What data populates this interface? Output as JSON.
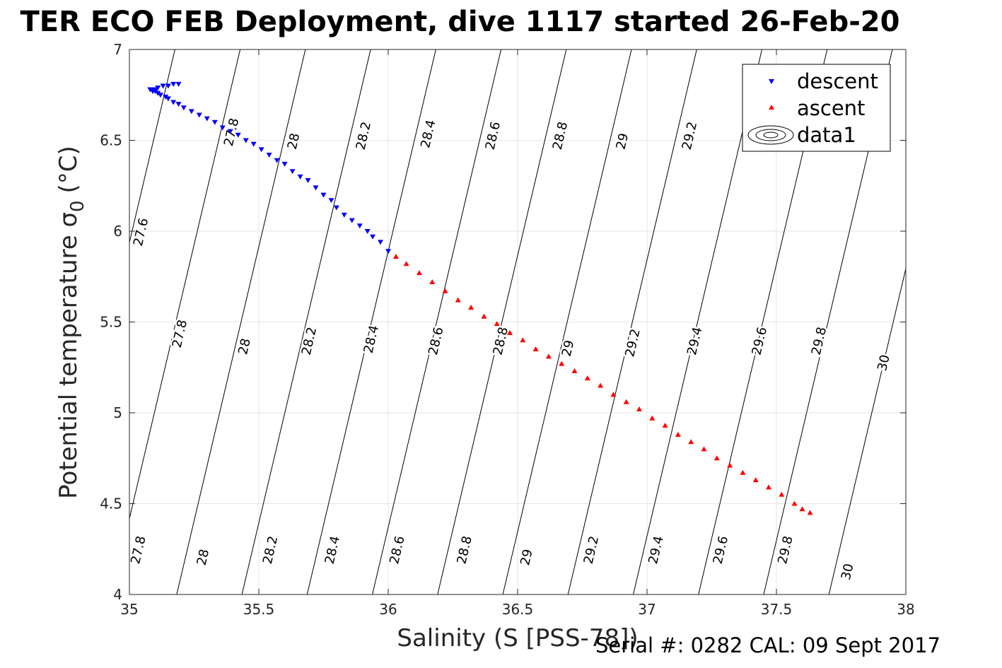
{
  "title": "TER ECO FEB Deployment, dive 1117 started 26-Feb-20",
  "footer_note": "Serial #: 0282  CAL: 09 Sept 2017",
  "chart_data": {
    "type": "scatter",
    "xlabel": "Salinity (S [PSS-78])",
    "ylabel": "Potential temperature σ",
    "ylabel_subscript": "0",
    "ylabel_unit": "(°C)",
    "xlim": [
      35,
      38
    ],
    "ylim": [
      4,
      7
    ],
    "xticks": [
      35,
      35.5,
      36,
      36.5,
      37,
      37.5,
      38
    ],
    "xtick_labels": [
      "35",
      "35.5",
      "36",
      "36.5",
      "37",
      "37.5",
      "38"
    ],
    "yticks": [
      4,
      4.5,
      5,
      5.5,
      6,
      6.5,
      7
    ],
    "ytick_labels": [
      "4",
      "4.5",
      "5",
      "5.5",
      "6",
      "6.5",
      "7"
    ],
    "grid": true,
    "legend_position": "top-right",
    "series": [
      {
        "name": "descent",
        "marker": "triangle-down",
        "color": "#0000ff",
        "points": [
          [
            35.19,
            6.81
          ],
          [
            35.17,
            6.81
          ],
          [
            35.15,
            6.8
          ],
          [
            35.13,
            6.8
          ],
          [
            35.11,
            6.79
          ],
          [
            35.1,
            6.78
          ],
          [
            35.09,
            6.78
          ],
          [
            35.08,
            6.78
          ],
          [
            35.09,
            6.77
          ],
          [
            35.1,
            6.77
          ],
          [
            35.11,
            6.76
          ],
          [
            35.12,
            6.75
          ],
          [
            35.14,
            6.74
          ],
          [
            35.15,
            6.73
          ],
          [
            35.17,
            6.71
          ],
          [
            35.19,
            6.7
          ],
          [
            35.21,
            6.68
          ],
          [
            35.24,
            6.66
          ],
          [
            35.27,
            6.64
          ],
          [
            35.3,
            6.62
          ],
          [
            35.33,
            6.6
          ],
          [
            35.36,
            6.57
          ],
          [
            35.39,
            6.55
          ],
          [
            35.42,
            6.53
          ],
          [
            35.45,
            6.5
          ],
          [
            35.48,
            6.48
          ],
          [
            35.51,
            6.45
          ],
          [
            35.54,
            6.42
          ],
          [
            35.57,
            6.39
          ],
          [
            35.6,
            6.37
          ],
          [
            35.63,
            6.33
          ],
          [
            35.66,
            6.3
          ],
          [
            35.69,
            6.28
          ],
          [
            35.72,
            6.24
          ],
          [
            35.75,
            6.2
          ],
          [
            35.78,
            6.17
          ],
          [
            35.8,
            6.13
          ],
          [
            35.83,
            6.09
          ],
          [
            35.86,
            6.06
          ],
          [
            35.89,
            6.03
          ],
          [
            35.92,
            6.0
          ],
          [
            35.94,
            5.97
          ],
          [
            35.97,
            5.94
          ],
          [
            36.0,
            5.89
          ]
        ]
      },
      {
        "name": "ascent",
        "marker": "triangle-up",
        "color": "#ff0000",
        "points": [
          [
            36.03,
            5.86
          ],
          [
            36.07,
            5.82
          ],
          [
            36.12,
            5.77
          ],
          [
            36.17,
            5.72
          ],
          [
            36.22,
            5.67
          ],
          [
            36.27,
            5.62
          ],
          [
            36.32,
            5.58
          ],
          [
            36.37,
            5.53
          ],
          [
            36.42,
            5.49
          ],
          [
            36.47,
            5.44
          ],
          [
            36.52,
            5.4
          ],
          [
            36.57,
            5.35
          ],
          [
            36.62,
            5.31
          ],
          [
            36.67,
            5.27
          ],
          [
            36.72,
            5.23
          ],
          [
            36.77,
            5.19
          ],
          [
            36.82,
            5.15
          ],
          [
            36.87,
            5.1
          ],
          [
            36.92,
            5.06
          ],
          [
            36.97,
            5.02
          ],
          [
            37.02,
            4.97
          ],
          [
            37.07,
            4.93
          ],
          [
            37.12,
            4.88
          ],
          [
            37.17,
            4.84
          ],
          [
            37.22,
            4.8
          ],
          [
            37.27,
            4.75
          ],
          [
            37.32,
            4.71
          ],
          [
            37.37,
            4.67
          ],
          [
            37.42,
            4.63
          ],
          [
            37.47,
            4.59
          ],
          [
            37.52,
            4.55
          ],
          [
            37.57,
            4.5
          ],
          [
            37.6,
            4.47
          ],
          [
            37.63,
            4.45
          ]
        ]
      },
      {
        "name": "data1",
        "marker": "contour",
        "color": "#000000",
        "contour_levels": [
          27.6,
          27.8,
          28,
          28.2,
          28.4,
          28.6,
          28.8,
          29,
          29.2,
          29.4,
          29.6,
          29.8,
          30
        ],
        "contour_labels": [
          {
            "text": "27.8",
            "x": 35.41,
            "y": 6.54
          },
          {
            "text": "28",
            "x": 35.65,
            "y": 6.49
          },
          {
            "text": "28.2",
            "x": 35.92,
            "y": 6.52
          },
          {
            "text": "28.4",
            "x": 36.17,
            "y": 6.53
          },
          {
            "text": "28.6",
            "x": 36.42,
            "y": 6.52
          },
          {
            "text": "28.8",
            "x": 36.68,
            "y": 6.52
          },
          {
            "text": "29",
            "x": 36.92,
            "y": 6.49
          },
          {
            "text": "29.2",
            "x": 37.18,
            "y": 6.52
          },
          {
            "text": "27.6",
            "x": 35.06,
            "y": 5.99
          },
          {
            "text": "27.8",
            "x": 35.21,
            "y": 5.43
          },
          {
            "text": "28",
            "x": 35.46,
            "y": 5.36
          },
          {
            "text": "28.2",
            "x": 35.71,
            "y": 5.39
          },
          {
            "text": "28.4",
            "x": 35.95,
            "y": 5.4
          },
          {
            "text": "28.6",
            "x": 36.2,
            "y": 5.39
          },
          {
            "text": "28.8",
            "x": 36.45,
            "y": 5.39
          },
          {
            "text": "29",
            "x": 36.71,
            "y": 5.35
          },
          {
            "text": "29.2",
            "x": 36.96,
            "y": 5.38
          },
          {
            "text": "29.4",
            "x": 37.2,
            "y": 5.39
          },
          {
            "text": "29.6",
            "x": 37.45,
            "y": 5.39
          },
          {
            "text": "29.8",
            "x": 37.68,
            "y": 5.39
          },
          {
            "text": "30",
            "x": 37.93,
            "y": 5.27
          },
          {
            "text": "27.8",
            "x": 35.05,
            "y": 4.24
          },
          {
            "text": "28",
            "x": 35.3,
            "y": 4.2
          },
          {
            "text": "28.2",
            "x": 35.56,
            "y": 4.24
          },
          {
            "text": "28.4",
            "x": 35.8,
            "y": 4.24
          },
          {
            "text": "28.6",
            "x": 36.05,
            "y": 4.24
          },
          {
            "text": "28.8",
            "x": 36.31,
            "y": 4.24
          },
          {
            "text": "29",
            "x": 36.55,
            "y": 4.2
          },
          {
            "text": "29.2",
            "x": 36.8,
            "y": 4.24
          },
          {
            "text": "29.4",
            "x": 37.05,
            "y": 4.24
          },
          {
            "text": "29.6",
            "x": 37.3,
            "y": 4.24
          },
          {
            "text": "29.8",
            "x": 37.55,
            "y": 4.24
          },
          {
            "text": "30",
            "x": 37.79,
            "y": 4.12
          }
        ]
      }
    ]
  }
}
